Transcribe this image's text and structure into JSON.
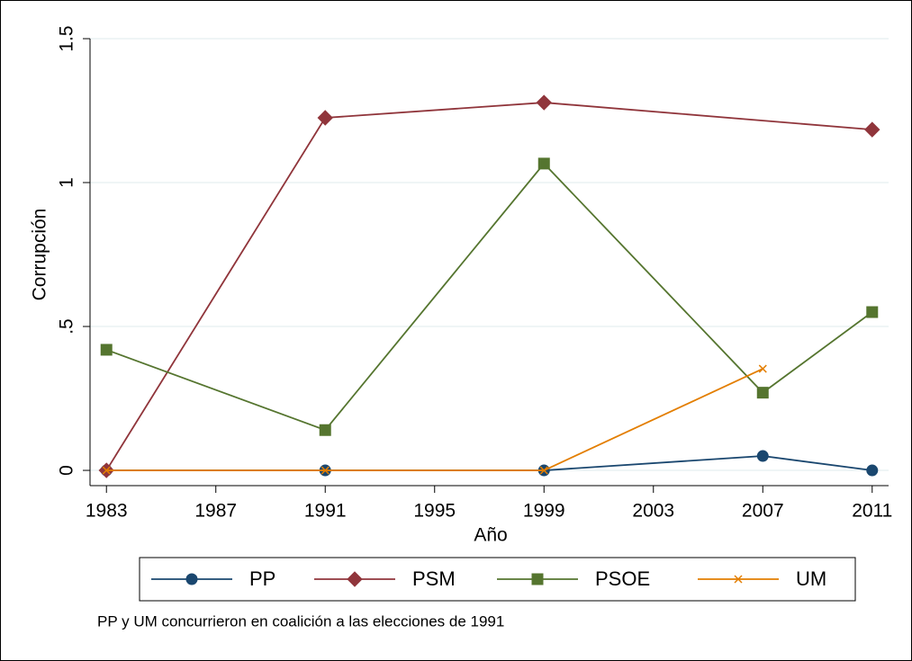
{
  "chart_data": {
    "type": "line",
    "x_label": "Año",
    "y_label": "Corrupción",
    "note": "PP y UM concurrieron en coalición a las elecciones de 1991",
    "series": [
      {
        "name": "PP",
        "color": "#1a476f",
        "marker": "circle",
        "x": [
          1983,
          1991,
          1999,
          2007,
          2011
        ],
        "values": [
          0,
          0,
          0,
          0.05,
          0
        ]
      },
      {
        "name": "PSM",
        "color": "#90353b",
        "marker": "diamond",
        "x": [
          1983,
          1991,
          1999,
          2011
        ],
        "values": [
          0,
          1.225,
          1.278,
          1.184
        ]
      },
      {
        "name": "PSOE",
        "color": "#55752f",
        "marker": "square",
        "x": [
          1983,
          1991,
          1999,
          2007,
          2011
        ],
        "values": [
          0.419,
          0.14,
          1.066,
          0.27,
          0.55
        ]
      },
      {
        "name": "UM",
        "color": "#e37e00",
        "marker": "x",
        "x": [
          1983,
          1991,
          1999,
          2007
        ],
        "values": [
          0,
          0,
          0,
          0.353
        ]
      }
    ],
    "xlim": [
      1982.4,
      2011.6
    ],
    "xticks": [
      1983,
      1987,
      1991,
      1995,
      1999,
      2003,
      2007,
      2011
    ],
    "ylim": [
      -0.053,
      1.5
    ],
    "yticks": [
      0,
      {
        "value": 0.5,
        "label": ".5"
      },
      1,
      1.5
    ],
    "grid": true,
    "legend": "bottom"
  }
}
